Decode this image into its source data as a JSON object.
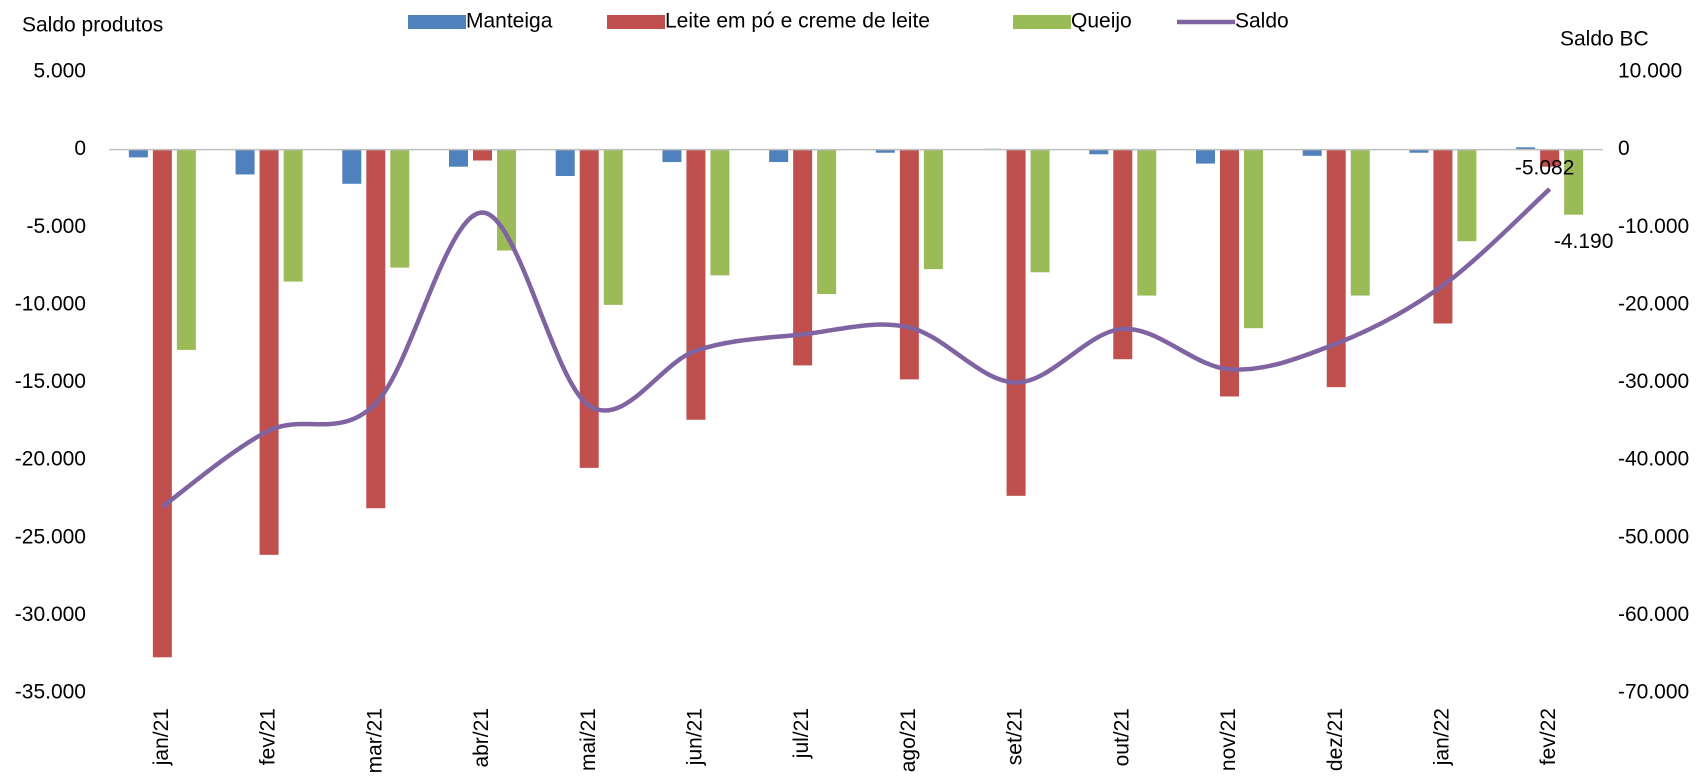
{
  "chart_data": {
    "type": "bar",
    "y_label": "Saldo produtos",
    "y2_label": "Saldo BC",
    "categories": [
      "jan/21",
      "fev/21",
      "mar/21",
      "abr/21",
      "mai/21",
      "jun/21",
      "jul/21",
      "ago/21",
      "set/21",
      "out/21",
      "nov/21",
      "dez/21",
      "jan/22",
      "fev/22"
    ],
    "series": [
      {
        "name": "Manteiga",
        "color": "#4f81bd",
        "type": "bar",
        "values": [
          -500,
          -1600,
          -2200,
          -1100,
          -1700,
          -800,
          -800,
          -200,
          50,
          -300,
          -900,
          -400,
          -200,
          150
        ]
      },
      {
        "name": "Leite em pó e creme de leite",
        "color": "#c0504d",
        "type": "bar",
        "values": [
          -32700,
          -26100,
          -23100,
          -700,
          -20500,
          -17400,
          -13900,
          -14800,
          -22300,
          -13500,
          -15900,
          -15300,
          -11200,
          -1100
        ]
      },
      {
        "name": "Queijo",
        "color": "#9bbb59",
        "type": "bar",
        "values": [
          -12900,
          -8500,
          -7600,
          -6500,
          -10000,
          -8100,
          -9300,
          -7700,
          -7900,
          -9400,
          -11500,
          -9400,
          -5900,
          -4190
        ],
        "value_labels": [
          null,
          null,
          null,
          null,
          null,
          null,
          null,
          null,
          null,
          null,
          null,
          null,
          null,
          "-4.190"
        ]
      },
      {
        "name": "Saldo",
        "color": "#8064a2",
        "type": "line",
        "axis": "y2",
        "values": [
          -46000,
          -36200,
          -32700,
          -8100,
          -33000,
          -25900,
          -23800,
          -22900,
          -30000,
          -23100,
          -28300,
          -25000,
          -17500,
          -5082
        ],
        "value_labels": [
          null,
          null,
          null,
          null,
          null,
          null,
          null,
          null,
          null,
          null,
          null,
          null,
          null,
          "-5.082"
        ]
      }
    ],
    "ylim": [
      -35000,
      5000
    ],
    "yticks": [
      {
        "value": -35000,
        "label": "-35.000"
      },
      {
        "value": -30000,
        "label": "-30.000"
      },
      {
        "value": -25000,
        "label": "-25.000"
      },
      {
        "value": -20000,
        "label": "-20.000"
      },
      {
        "value": -15000,
        "label": "-15.000"
      },
      {
        "value": -10000,
        "label": "-10.000"
      },
      {
        "value": -5000,
        "label": "-5.000"
      },
      0,
      {
        "value": 5000,
        "label": "5.000"
      }
    ],
    "y2lim": [
      -70000,
      10000
    ],
    "y2ticks": [
      {
        "value": -70000,
        "label": "-70.000"
      },
      {
        "value": -60000,
        "label": "-60.000"
      },
      {
        "value": -50000,
        "label": "-50.000"
      },
      {
        "value": -40000,
        "label": "-40.000"
      },
      {
        "value": -30000,
        "label": "-30.000"
      },
      {
        "value": -20000,
        "label": "-20.000"
      },
      {
        "value": -10000,
        "label": "-10.000"
      },
      0,
      {
        "value": 10000,
        "label": "10.000"
      }
    ],
    "legend": "top",
    "grid": false
  }
}
